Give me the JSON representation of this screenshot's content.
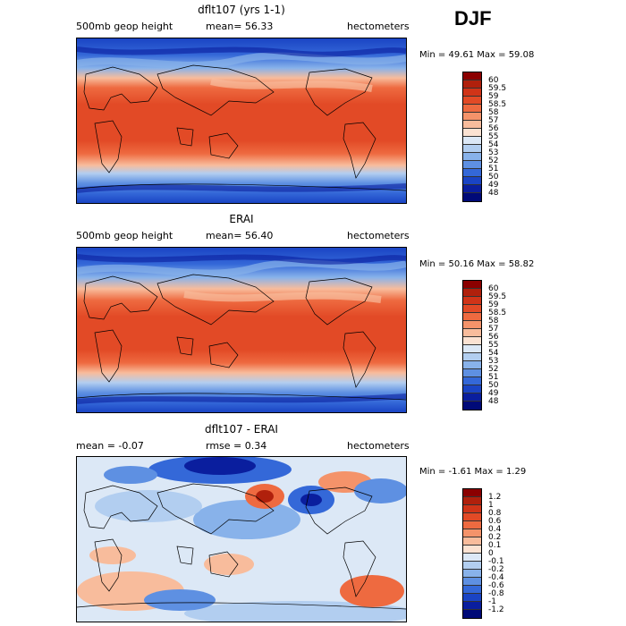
{
  "season": "DJF",
  "units": "hectometers",
  "panels": [
    {
      "title": "dflt107 (yrs 1-1)",
      "left_label": "500mb geop height",
      "center_label": "mean=   56.33",
      "right_label": "hectometers",
      "stats": "Min =   49.61  Max =   59.08",
      "colorbar_labels": [
        "60",
        "59.5",
        "59",
        "58.5",
        "58",
        "57",
        "56",
        "55",
        "54",
        "53",
        "52",
        "51",
        "50",
        "49",
        "48"
      ],
      "colorbar_colors": [
        "#8b0000",
        "#b0200c",
        "#d03418",
        "#e24a26",
        "#ee6a40",
        "#f4936a",
        "#f8bc9c",
        "#fbe2d2",
        "#dce8f6",
        "#b2cef0",
        "#88b2ea",
        "#5e90e2",
        "#3468d8",
        "#1a44c4",
        "#0a1e9e",
        "#000a78"
      ]
    },
    {
      "title": "ERAI",
      "left_label": "500mb geop height",
      "center_label": "mean=   56.40",
      "right_label": "hectometers",
      "stats": "Min =   50.16  Max =   58.82",
      "colorbar_labels": [
        "60",
        "59.5",
        "59",
        "58.5",
        "58",
        "57",
        "56",
        "55",
        "54",
        "53",
        "52",
        "51",
        "50",
        "49",
        "48"
      ],
      "colorbar_colors": [
        "#8b0000",
        "#b0200c",
        "#d03418",
        "#e24a26",
        "#ee6a40",
        "#f4936a",
        "#f8bc9c",
        "#fbe2d2",
        "#dce8f6",
        "#b2cef0",
        "#88b2ea",
        "#5e90e2",
        "#3468d8",
        "#1a44c4",
        "#0a1e9e",
        "#000a78"
      ]
    },
    {
      "title": "dflt107 - ERAI",
      "left_label": "mean =   -0.07",
      "center_label": "rmse =     0.34",
      "right_label": "hectometers",
      "stats": "Min =  -1.61  Max =    1.29",
      "colorbar_labels": [
        "1.2",
        "1",
        "0.8",
        "0.6",
        "0.4",
        "0.2",
        "0.1",
        "0",
        "-0.1",
        "-0.2",
        "-0.4",
        "-0.6",
        "-0.8",
        "-1",
        "-1.2"
      ],
      "colorbar_colors": [
        "#8b0000",
        "#b0200c",
        "#d03418",
        "#e24a26",
        "#ee6a40",
        "#f4936a",
        "#f8bc9c",
        "#fbe2d2",
        "#dce8f6",
        "#b2cef0",
        "#88b2ea",
        "#5e90e2",
        "#3468d8",
        "#1a44c4",
        "#0a1e9e",
        "#000a78"
      ]
    }
  ]
}
